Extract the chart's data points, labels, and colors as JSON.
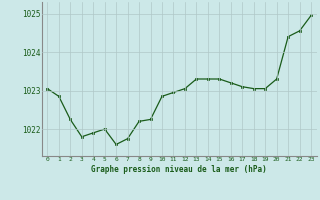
{
  "x": [
    0,
    1,
    2,
    3,
    4,
    5,
    6,
    7,
    8,
    9,
    10,
    11,
    12,
    13,
    14,
    15,
    16,
    17,
    18,
    19,
    20,
    21,
    22,
    23
  ],
  "y": [
    1023.05,
    1022.85,
    1022.25,
    1021.8,
    1021.9,
    1022.0,
    1021.6,
    1021.75,
    1022.2,
    1022.25,
    1022.85,
    1022.95,
    1023.05,
    1023.3,
    1023.3,
    1023.3,
    1023.2,
    1023.1,
    1023.05,
    1023.05,
    1023.3,
    1024.4,
    1024.55,
    1024.95
  ],
  "line_color": "#1a5c1a",
  "marker_color": "#1a5c1a",
  "bg_color": "#cce8e8",
  "plot_bg_color": "#cce8e8",
  "grid_color": "#b0c8c8",
  "xlabel": "Graphe pression niveau de la mer (hPa)",
  "xlabel_color": "#1a5c1a",
  "tick_label_color": "#1a5c1a",
  "ytick_labels": [
    1022,
    1023,
    1024,
    1025
  ],
  "ylim": [
    1021.3,
    1025.3
  ],
  "xlim": [
    -0.5,
    23.5
  ],
  "xtick_labels": [
    "0",
    "1",
    "2",
    "3",
    "4",
    "5",
    "6",
    "7",
    "8",
    "9",
    "10",
    "11",
    "12",
    "13",
    "14",
    "15",
    "16",
    "17",
    "18",
    "19",
    "20",
    "21",
    "22",
    "23"
  ]
}
